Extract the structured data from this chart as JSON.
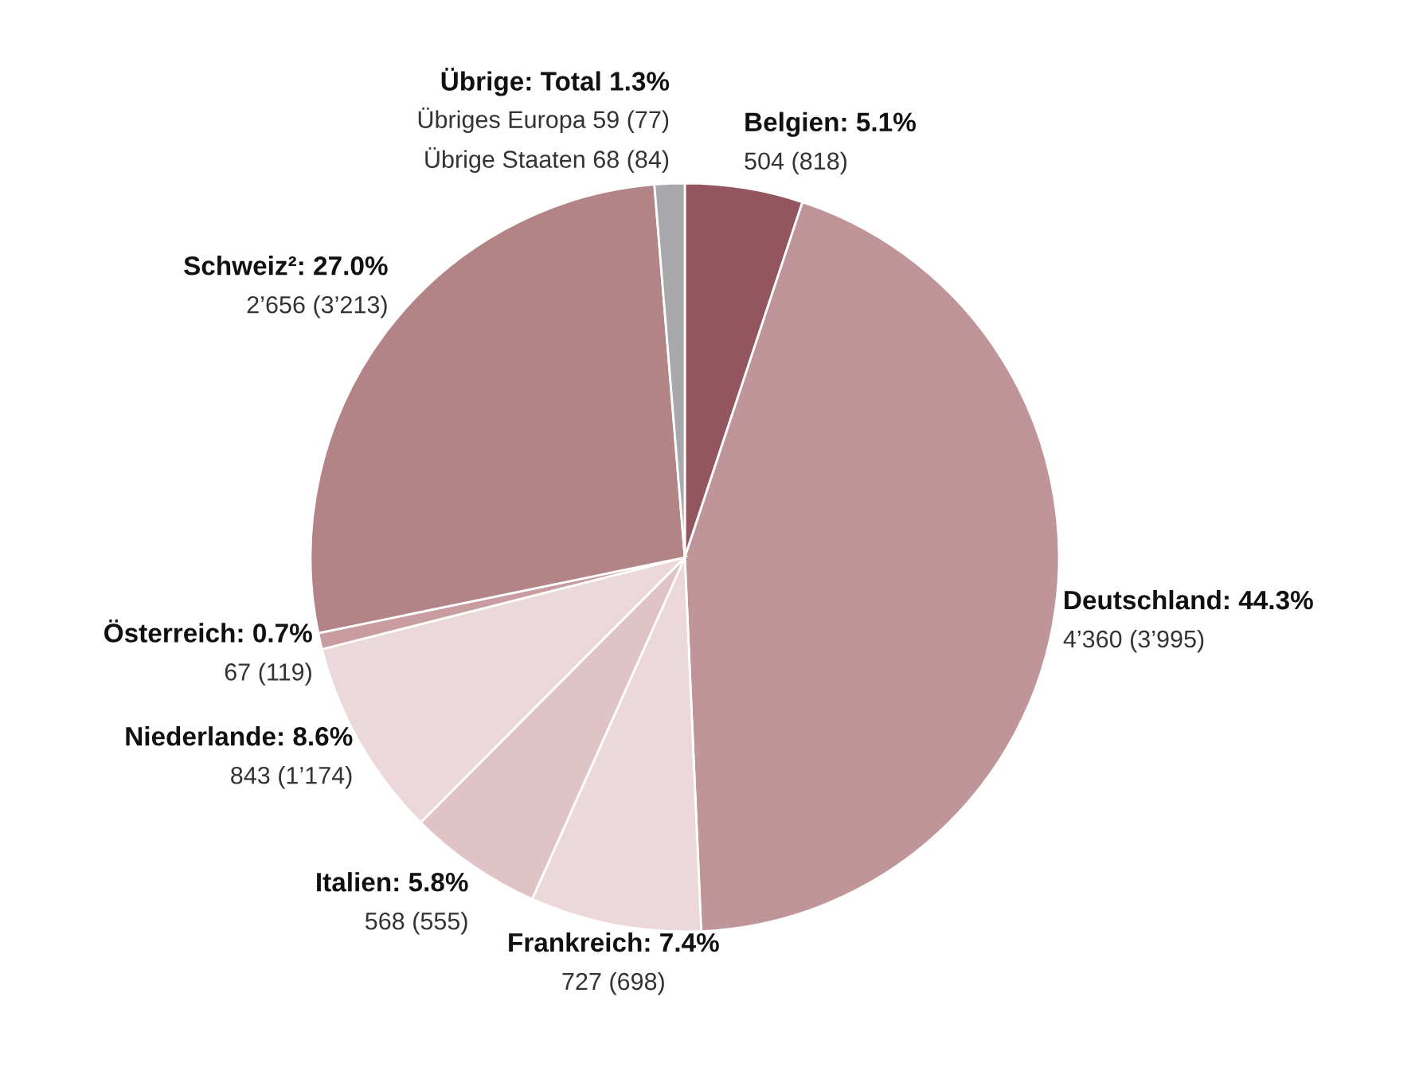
{
  "chart_data": {
    "type": "pie",
    "categories": [
      "Belgien",
      "Deutschland",
      "Frankreich",
      "Italien",
      "Niederlande",
      "Österreich",
      "Schweiz²",
      "Übrige"
    ],
    "values": [
      5.1,
      44.3,
      7.4,
      5.8,
      8.6,
      0.7,
      27.0,
      1.3
    ],
    "colors": [
      "#94565e",
      "#c0959a",
      "#ecd8da",
      "#e0c3c6",
      "#ecd8da",
      "#c89ca0",
      "#b38486",
      "#a9a9ab"
    ],
    "value_labels": [
      "5.1%",
      "44.3%",
      "7.4%",
      "5.8%",
      "8.6%",
      "0.7%",
      "27.0%",
      "Total 1.3%"
    ],
    "annotations": [
      "504 (818)",
      "4’360 (3’995)",
      "727 (698)",
      "568 (555)",
      "843 (1’174)",
      "67 (119)",
      "2’656 (3’213)",
      "Übriges Europa 59 (77)\nÜbrige Staaten 68 (84)"
    ]
  }
}
